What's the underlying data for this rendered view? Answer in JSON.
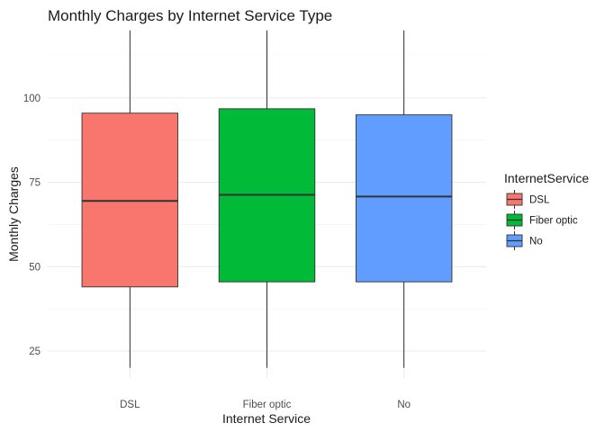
{
  "chart_data": {
    "type": "boxplot",
    "title": "Monthly Charges by Internet Service Type",
    "xlabel": "Internet Service",
    "ylabel": "Monthly Charges",
    "categories": [
      "DSL",
      "Fiber optic",
      "No"
    ],
    "boxes": [
      {
        "category": "DSL",
        "min": 20,
        "q1": 44,
        "median": 69.5,
        "q3": 95.5,
        "max": 120,
        "color": "#F8766D"
      },
      {
        "category": "Fiber optic",
        "min": 20,
        "q1": 45.5,
        "median": 71.3,
        "q3": 96.8,
        "max": 120,
        "color": "#00BA38"
      },
      {
        "category": "No",
        "min": 20,
        "q1": 45.5,
        "median": 70.8,
        "q3": 95,
        "max": 120,
        "color": "#619CFF"
      }
    ],
    "yticks": [
      25,
      50,
      75,
      100
    ],
    "ylim": [
      17,
      120.5
    ],
    "grid": true,
    "legend": {
      "title": "InternetService",
      "position": "right",
      "entries": [
        "DSL",
        "Fiber optic",
        "No"
      ]
    }
  }
}
